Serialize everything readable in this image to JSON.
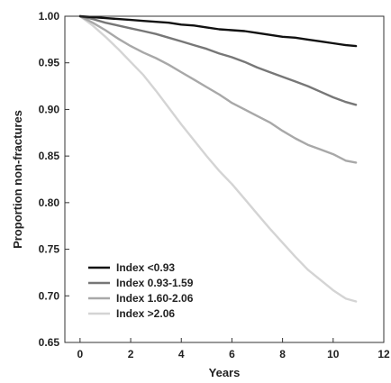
{
  "chart_data": {
    "type": "line",
    "title": "",
    "xlabel": "Years",
    "ylabel": "Proportion non-fractures",
    "xlim": [
      -0.6,
      12
    ],
    "ylim": [
      0.65,
      1.0
    ],
    "x_ticks": [
      0,
      2,
      4,
      6,
      8,
      10,
      12
    ],
    "y_ticks": [
      0.65,
      0.7,
      0.75,
      0.8,
      0.85,
      0.9,
      0.95,
      1.0
    ],
    "x_tick_labels": [
      "0",
      "2",
      "4",
      "6",
      "8",
      "10",
      "12"
    ],
    "y_tick_labels": [
      "0.65",
      "0.70",
      "0.75",
      "0.80",
      "0.85",
      "0.90",
      "0.95",
      "1.00"
    ],
    "grid": false,
    "legend_position": "bottom-left",
    "series": [
      {
        "name": "Index <0.93",
        "color": "#111111",
        "x": [
          0,
          0.5,
          1,
          1.5,
          2,
          2.5,
          3,
          3.5,
          4,
          4.5,
          5,
          5.5,
          6,
          6.5,
          7,
          7.5,
          8,
          8.5,
          9,
          9.5,
          10,
          10.5,
          10.9
        ],
        "y": [
          1.0,
          0.999,
          0.998,
          0.997,
          0.996,
          0.995,
          0.994,
          0.993,
          0.991,
          0.99,
          0.988,
          0.986,
          0.985,
          0.984,
          0.982,
          0.98,
          0.978,
          0.977,
          0.975,
          0.973,
          0.971,
          0.969,
          0.968
        ]
      },
      {
        "name": "Index 0.93-1.59",
        "color": "#777777",
        "x": [
          0,
          0.5,
          1,
          1.5,
          2,
          2.5,
          3,
          3.5,
          4,
          4.5,
          5,
          5.5,
          6,
          6.5,
          7,
          7.5,
          8,
          8.5,
          9,
          9.5,
          10,
          10.5,
          10.9
        ],
        "y": [
          1.0,
          0.997,
          0.993,
          0.99,
          0.987,
          0.984,
          0.981,
          0.977,
          0.973,
          0.969,
          0.965,
          0.96,
          0.956,
          0.951,
          0.945,
          0.94,
          0.935,
          0.93,
          0.925,
          0.919,
          0.913,
          0.908,
          0.905
        ]
      },
      {
        "name": "Index 1.60-2.06",
        "color": "#a8a8a8",
        "x": [
          0,
          0.5,
          1,
          1.5,
          2,
          2.5,
          3,
          3.5,
          4,
          4.5,
          5,
          5.5,
          6,
          6.5,
          7,
          7.5,
          8,
          8.5,
          9,
          9.5,
          10,
          10.5,
          10.9
        ],
        "y": [
          1.0,
          0.993,
          0.985,
          0.976,
          0.968,
          0.961,
          0.955,
          0.948,
          0.94,
          0.932,
          0.924,
          0.916,
          0.907,
          0.9,
          0.893,
          0.886,
          0.877,
          0.869,
          0.862,
          0.857,
          0.852,
          0.845,
          0.843
        ]
      },
      {
        "name": "Index >2.06",
        "color": "#d4d4d4",
        "x": [
          0,
          0.5,
          1,
          1.5,
          2,
          2.5,
          3,
          3.5,
          4,
          4.5,
          5,
          5.5,
          6,
          6.5,
          7,
          7.5,
          8,
          8.5,
          9,
          9.5,
          10,
          10.5,
          10.9
        ],
        "y": [
          1.0,
          0.99,
          0.978,
          0.965,
          0.951,
          0.937,
          0.92,
          0.902,
          0.884,
          0.867,
          0.85,
          0.834,
          0.82,
          0.804,
          0.788,
          0.772,
          0.757,
          0.742,
          0.728,
          0.717,
          0.706,
          0.697,
          0.694
        ]
      }
    ]
  }
}
